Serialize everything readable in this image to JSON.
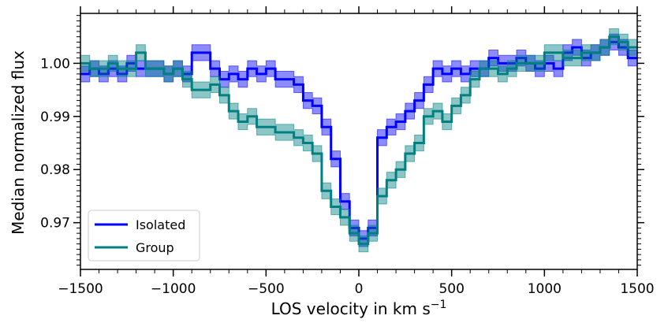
{
  "chart_data": {
    "type": "line",
    "title": "",
    "xlabel": "LOS velocity in km s",
    "xlabel_superscript": "−1",
    "ylabel": "Median normalized flux",
    "xlim": [
      -1500,
      1500
    ],
    "ylim": [
      0.9612,
      1.0094
    ],
    "xticks": [
      -1500,
      -1000,
      -500,
      0,
      500,
      1000,
      1500
    ],
    "xtick_labels": [
      "−1500",
      "−1000",
      "−500",
      "0",
      "500",
      "1000",
      "1500"
    ],
    "yticks": [
      0.97,
      0.98,
      0.99,
      1.0
    ],
    "ytick_labels": [
      "0.97",
      "0.98",
      "0.99",
      "1.00"
    ],
    "legend_position": "lower-left",
    "x": [
      -1500,
      -1450,
      -1400,
      -1350,
      -1300,
      -1250,
      -1200,
      -1150,
      -1100,
      -1050,
      -1000,
      -950,
      -900,
      -850,
      -800,
      -750,
      -700,
      -650,
      -600,
      -550,
      -500,
      -450,
      -400,
      -350,
      -300,
      -250,
      -200,
      -150,
      -100,
      -50,
      0,
      50,
      100,
      150,
      200,
      250,
      300,
      350,
      400,
      450,
      500,
      550,
      600,
      650,
      700,
      750,
      800,
      850,
      900,
      950,
      1000,
      1050,
      1100,
      1150,
      1200,
      1250,
      1300,
      1350,
      1400,
      1450
    ],
    "series": [
      {
        "name": "Isolated",
        "color": "#0000ff",
        "values": [
          0.998,
          0.999,
          0.998,
          0.999,
          0.998,
          1.0,
          0.999,
          0.999,
          0.999,
          0.998,
          0.999,
          0.998,
          1.002,
          1.002,
          0.999,
          0.997,
          0.998,
          0.997,
          0.999,
          0.998,
          0.999,
          0.997,
          0.997,
          0.996,
          0.993,
          0.992,
          0.988,
          0.982,
          0.974,
          0.969,
          0.967,
          0.969,
          0.986,
          0.988,
          0.989,
          0.991,
          0.993,
          0.996,
          0.999,
          0.998,
          0.999,
          0.998,
          0.999,
          0.999,
          1.001,
          1.0,
          1.0,
          1.001,
          1.0,
          0.999,
          1.0,
          0.999,
          1.002,
          1.003,
          1.001,
          1.002,
          1.003,
          1.004,
          1.003,
          1.001
        ],
        "band_halfwidth": [
          0.0015,
          0.0015,
          0.0015,
          0.0015,
          0.0015,
          0.0015,
          0.0015,
          0.0015,
          0.0015,
          0.0015,
          0.0015,
          0.0015,
          0.0015,
          0.0015,
          0.0015,
          0.0015,
          0.0015,
          0.0015,
          0.0015,
          0.0015,
          0.0015,
          0.0015,
          0.0015,
          0.0015,
          0.0015,
          0.0015,
          0.0015,
          0.0015,
          0.0015,
          0.0015,
          0.0015,
          0.0015,
          0.0015,
          0.0015,
          0.0015,
          0.0015,
          0.0015,
          0.0015,
          0.0015,
          0.0015,
          0.0015,
          0.0015,
          0.0015,
          0.0015,
          0.0015,
          0.0015,
          0.0015,
          0.0015,
          0.0015,
          0.0015,
          0.0015,
          0.0015,
          0.0015,
          0.0015,
          0.0015,
          0.0015,
          0.0015,
          0.0015,
          0.0015,
          0.0015
        ]
      },
      {
        "name": "Group",
        "color": "#008080",
        "values": [
          1.0,
          0.999,
          0.999,
          1.0,
          0.999,
          0.999,
          1.002,
          0.999,
          0.999,
          0.998,
          0.999,
          0.997,
          0.995,
          0.995,
          0.996,
          0.994,
          0.991,
          0.989,
          0.99,
          0.988,
          0.988,
          0.987,
          0.987,
          0.986,
          0.985,
          0.983,
          0.976,
          0.973,
          0.971,
          0.968,
          0.966,
          0.968,
          0.975,
          0.978,
          0.98,
          0.983,
          0.985,
          0.99,
          0.991,
          0.989,
          0.992,
          0.994,
          0.997,
          0.999,
          0.999,
          0.998,
          0.999,
          1.0,
          1.0,
          1.0,
          1.002,
          1.002,
          1.001,
          1.001,
          1.002,
          1.002,
          1.003,
          1.005,
          1.004,
          1.003
        ],
        "band_halfwidth": [
          0.0015,
          0.0015,
          0.0015,
          0.0015,
          0.0015,
          0.0015,
          0.0015,
          0.0015,
          0.0015,
          0.0015,
          0.0015,
          0.0015,
          0.0015,
          0.0015,
          0.0015,
          0.0015,
          0.0015,
          0.0015,
          0.0015,
          0.0015,
          0.0015,
          0.0015,
          0.0015,
          0.0015,
          0.0015,
          0.0015,
          0.0015,
          0.0015,
          0.0015,
          0.0015,
          0.0015,
          0.0015,
          0.0015,
          0.0015,
          0.0015,
          0.0015,
          0.0015,
          0.0015,
          0.0015,
          0.0015,
          0.0015,
          0.0015,
          0.0015,
          0.0015,
          0.0015,
          0.0015,
          0.0015,
          0.0015,
          0.0015,
          0.0015,
          0.0015,
          0.0015,
          0.0015,
          0.0015,
          0.0015,
          0.0015,
          0.0015,
          0.0015,
          0.0015,
          0.0015
        ]
      }
    ]
  }
}
